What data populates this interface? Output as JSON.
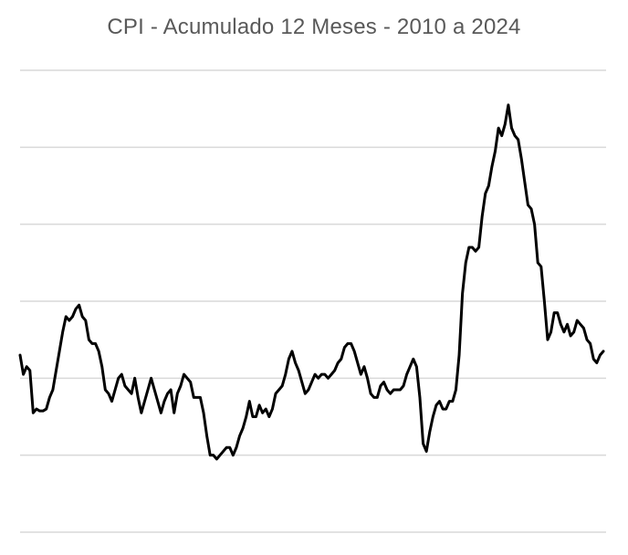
{
  "chart_data": {
    "type": "line",
    "title": "CPI - Acumulado 12 Meses - 2010 a 2024",
    "xlabel": "",
    "ylabel": "",
    "grid": true,
    "legend": "none",
    "ylim": [
      -2,
      10
    ],
    "y_gridlines": [
      -2,
      0,
      2,
      4,
      6,
      8,
      10
    ],
    "series": [
      {
        "values": [
          2.6,
          2.1,
          2.3,
          2.2,
          1.1,
          1.2,
          1.15,
          1.15,
          1.2,
          1.5,
          1.7,
          2.2,
          2.7,
          3.2,
          3.6,
          3.5,
          3.6,
          3.8,
          3.9,
          3.6,
          3.5,
          3.0,
          2.9,
          2.9,
          2.7,
          2.3,
          1.7,
          1.6,
          1.4,
          1.7,
          2.0,
          2.1,
          1.8,
          1.7,
          1.6,
          2.0,
          1.5,
          1.1,
          1.4,
          1.7,
          2.0,
          1.7,
          1.4,
          1.1,
          1.4,
          1.6,
          1.7,
          1.1,
          1.6,
          1.8,
          2.1,
          2.0,
          1.9,
          1.5,
          1.5,
          1.5,
          1.1,
          0.5,
          0.0,
          0.0,
          -0.1,
          0.0,
          0.1,
          0.2,
          0.2,
          0.0,
          0.2,
          0.5,
          0.7,
          1.0,
          1.4,
          1.0,
          1.0,
          1.3,
          1.1,
          1.2,
          1.0,
          1.2,
          1.6,
          1.7,
          1.8,
          2.1,
          2.5,
          2.7,
          2.4,
          2.2,
          1.9,
          1.6,
          1.7,
          1.9,
          2.1,
          2.0,
          2.1,
          2.1,
          2.0,
          2.1,
          2.2,
          2.4,
          2.5,
          2.8,
          2.9,
          2.9,
          2.7,
          2.4,
          2.1,
          2.3,
          2.0,
          1.6,
          1.5,
          1.5,
          1.8,
          1.9,
          1.7,
          1.6,
          1.7,
          1.7,
          1.7,
          1.8,
          2.1,
          2.3,
          2.5,
          2.3,
          1.5,
          0.3,
          0.1,
          0.6,
          1.0,
          1.3,
          1.4,
          1.2,
          1.2,
          1.4,
          1.4,
          1.7,
          2.6,
          4.2,
          5.0,
          5.4,
          5.4,
          5.3,
          5.4,
          6.2,
          6.8,
          7.0,
          7.5,
          7.9,
          8.5,
          8.3,
          8.6,
          9.1,
          8.5,
          8.3,
          8.2,
          7.7,
          7.1,
          6.5,
          6.4,
          6.0,
          5.0,
          4.9,
          4.0,
          3.0,
          3.2,
          3.7,
          3.7,
          3.4,
          3.2,
          3.4,
          3.1,
          3.2,
          3.5,
          3.4,
          3.3,
          3.0,
          2.9,
          2.5,
          2.4,
          2.6,
          2.7
        ]
      }
    ]
  }
}
